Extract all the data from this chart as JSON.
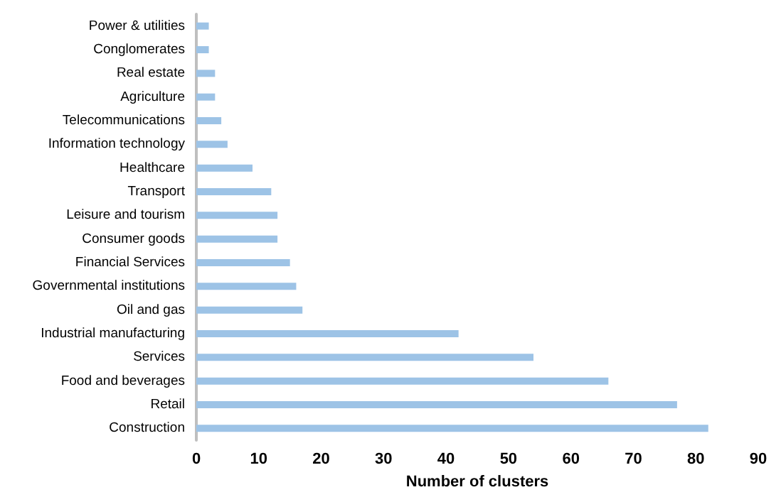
{
  "chart_data": {
    "type": "bar",
    "orientation": "horizontal",
    "xlabel": "Number of clusters",
    "categories": [
      "Power & utilities",
      "Conglomerates",
      "Real estate",
      "Agriculture",
      "Telecommunications",
      "Information technology",
      "Healthcare",
      "Transport",
      "Leisure and tourism",
      "Consumer goods",
      "Financial Services",
      "Governmental institutions",
      "Oil and gas",
      "Industrial manufacturing",
      "Services",
      "Food and beverages",
      "Retail",
      "Construction"
    ],
    "values": [
      2,
      2,
      3,
      3,
      4,
      5,
      9,
      12,
      13,
      13,
      15,
      16,
      17,
      42,
      54,
      66,
      77,
      82
    ],
    "color": "#9dc3e6",
    "xlim": [
      0,
      90
    ],
    "xticks": [
      0,
      10,
      20,
      30,
      40,
      50,
      60,
      70,
      80,
      90
    ],
    "grid": false
  }
}
